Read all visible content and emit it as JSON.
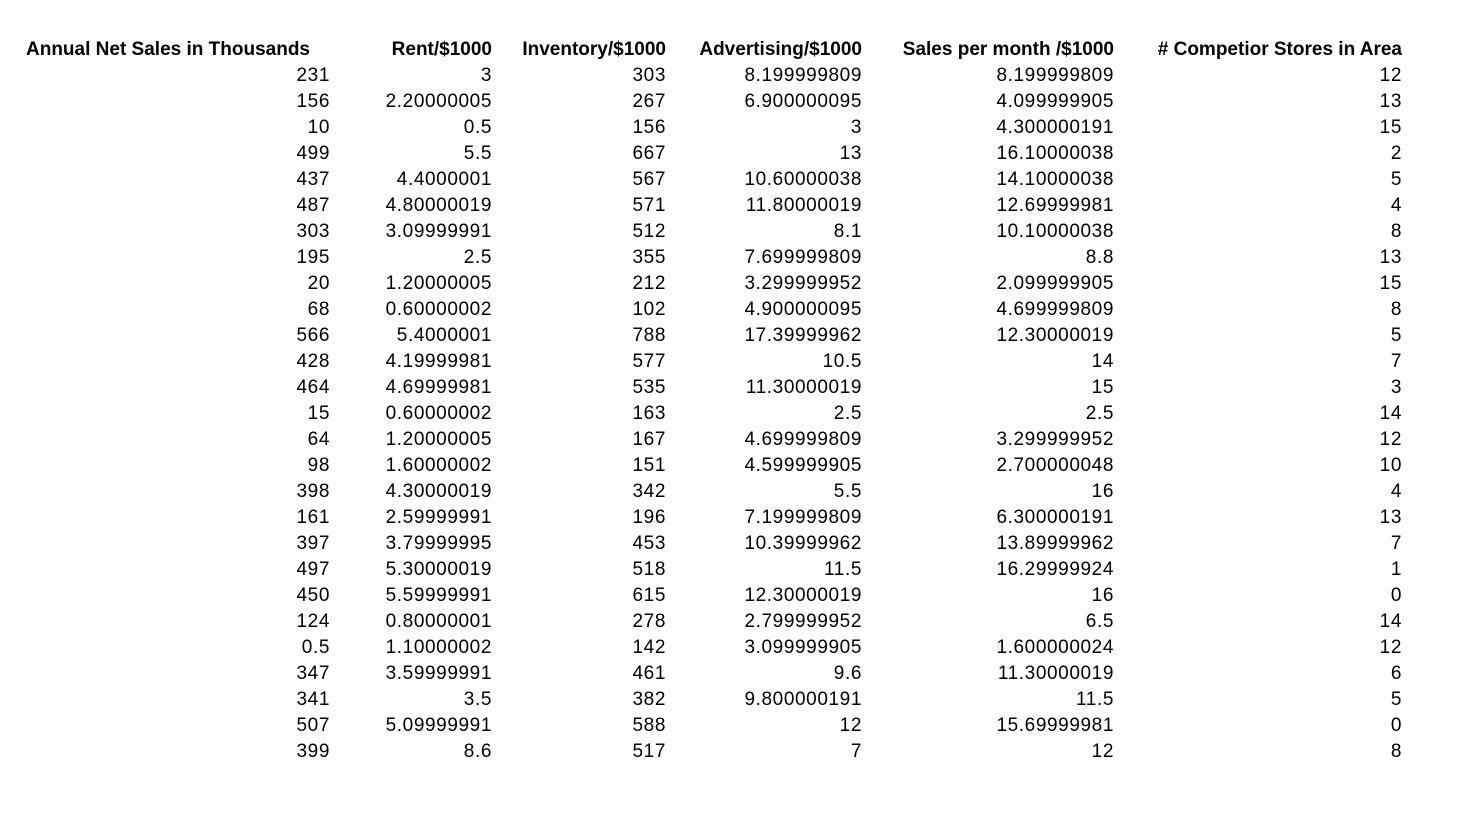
{
  "table": {
    "headers": [
      "Annual Net Sales in Thousands",
      "Rent/$1000",
      "Inventory/$1000",
      "Advertising/$1000",
      "Sales per month /$1000",
      "# Competior Stores in Area"
    ],
    "rows": [
      [
        "231",
        "3",
        "303",
        "8.199999809",
        "8.199999809",
        "12"
      ],
      [
        "156",
        "2.20000005",
        "267",
        "6.900000095",
        "4.099999905",
        "13"
      ],
      [
        "10",
        "0.5",
        "156",
        "3",
        "4.300000191",
        "15"
      ],
      [
        "499",
        "5.5",
        "667",
        "13",
        "16.10000038",
        "2"
      ],
      [
        "437",
        "4.4000001",
        "567",
        "10.60000038",
        "14.10000038",
        "5"
      ],
      [
        "487",
        "4.80000019",
        "571",
        "11.80000019",
        "12.69999981",
        "4"
      ],
      [
        "303",
        "3.09999991",
        "512",
        "8.1",
        "10.10000038",
        "8"
      ],
      [
        "195",
        "2.5",
        "355",
        "7.699999809",
        "8.8",
        "13"
      ],
      [
        "20",
        "1.20000005",
        "212",
        "3.299999952",
        "2.099999905",
        "15"
      ],
      [
        "68",
        "0.60000002",
        "102",
        "4.900000095",
        "4.699999809",
        "8"
      ],
      [
        "566",
        "5.4000001",
        "788",
        "17.39999962",
        "12.30000019",
        "5"
      ],
      [
        "428",
        "4.19999981",
        "577",
        "10.5",
        "14",
        "7"
      ],
      [
        "464",
        "4.69999981",
        "535",
        "11.30000019",
        "15",
        "3"
      ],
      [
        "15",
        "0.60000002",
        "163",
        "2.5",
        "2.5",
        "14"
      ],
      [
        "64",
        "1.20000005",
        "167",
        "4.699999809",
        "3.299999952",
        "12"
      ],
      [
        "98",
        "1.60000002",
        "151",
        "4.599999905",
        "2.700000048",
        "10"
      ],
      [
        "398",
        "4.30000019",
        "342",
        "5.5",
        "16",
        "4"
      ],
      [
        "161",
        "2.59999991",
        "196",
        "7.199999809",
        "6.300000191",
        "13"
      ],
      [
        "397",
        "3.79999995",
        "453",
        "10.39999962",
        "13.89999962",
        "7"
      ],
      [
        "497",
        "5.30000019",
        "518",
        "11.5",
        "16.29999924",
        "1"
      ],
      [
        "450",
        "5.59999991",
        "615",
        "12.30000019",
        "16",
        "0"
      ],
      [
        "124",
        "0.80000001",
        "278",
        "2.799999952",
        "6.5",
        "14"
      ],
      [
        "0.5",
        "1.10000002",
        "142",
        "3.099999905",
        "1.600000024",
        "12"
      ],
      [
        "347",
        "3.59999991",
        "461",
        "9.6",
        "11.30000019",
        "6"
      ],
      [
        "341",
        "3.5",
        "382",
        "9.800000191",
        "11.5",
        "5"
      ],
      [
        "507",
        "5.09999991",
        "588",
        "12",
        "15.69999981",
        "0"
      ],
      [
        "399",
        "8.6",
        "517",
        "7",
        "12",
        "8"
      ]
    ]
  }
}
